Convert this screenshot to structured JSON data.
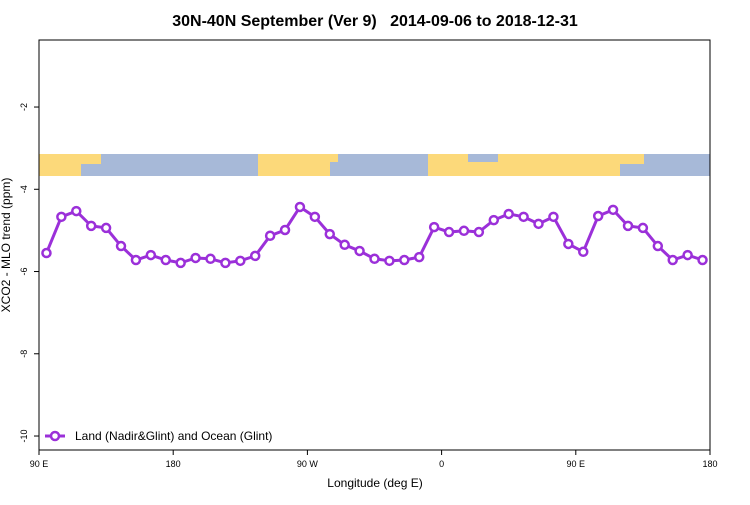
{
  "chart_data": {
    "type": "line",
    "title": "30N-40N September (Ver 9)   2014-09-06 to 2018-12-31",
    "xlabel": "Longitude (deg E)",
    "ylabel": "XCO2 - MLO trend (ppm)",
    "xlim": [
      90,
      540
    ],
    "xticks": [
      {
        "value": 90,
        "label": "90 E"
      },
      {
        "value": 180,
        "label": "180"
      },
      {
        "value": 270,
        "label": "90 W"
      },
      {
        "value": 360,
        "label": "0"
      },
      {
        "value": 450,
        "label": "90 E"
      },
      {
        "value": 540,
        "label": "180"
      }
    ],
    "ylim": [
      -10.34,
      -0.37
    ],
    "yticks": [
      -10,
      -8,
      -6,
      -4,
      -2
    ],
    "legend": "lower left",
    "x": [
      95,
      105,
      115,
      125,
      135,
      145,
      155,
      165,
      175,
      185,
      195,
      205,
      215,
      225,
      235,
      245,
      255,
      265,
      275,
      285,
      295,
      305,
      315,
      325,
      335,
      345,
      355,
      365,
      375,
      385,
      395,
      405,
      415,
      425,
      435,
      445,
      455,
      465,
      475,
      485,
      495,
      505,
      515,
      525,
      535
    ],
    "series": [
      {
        "name": "Land (Nadir&Glint) and Ocean (Glint)",
        "color": "#9b30d9",
        "values": [
          -5.55,
          -4.67,
          -4.53,
          -4.89,
          -4.94,
          -5.38,
          -5.72,
          -5.6,
          -5.72,
          -5.79,
          -5.67,
          -5.69,
          -5.79,
          -5.74,
          -5.62,
          -5.13,
          -4.99,
          -4.43,
          -4.67,
          -5.09,
          -5.35,
          -5.5,
          -5.69,
          -5.74,
          -5.72,
          -5.65,
          -4.92,
          -5.04,
          -5.01,
          -5.04,
          -4.75,
          -4.6,
          -4.67,
          -4.84,
          -4.67,
          -5.33,
          -5.52,
          -4.65,
          -4.5,
          -4.89,
          -4.94,
          -5.38,
          -5.72,
          -5.6,
          -5.72
        ]
      }
    ]
  }
}
